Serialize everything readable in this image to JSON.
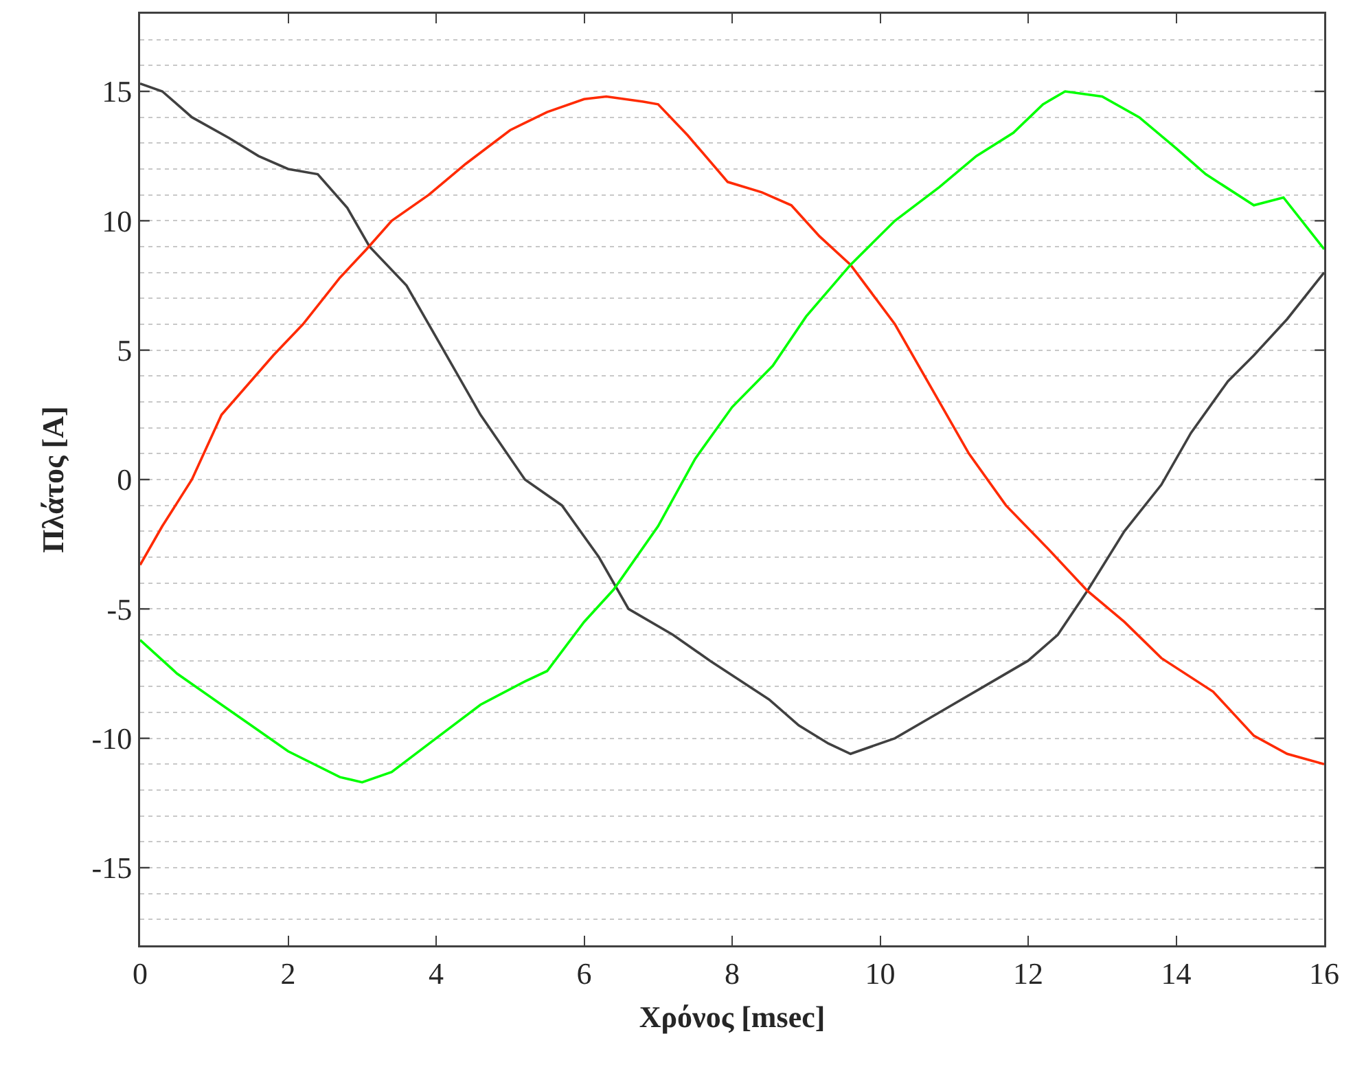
{
  "chart_data": {
    "type": "line",
    "xlabel": "Χρόνος [msec]",
    "ylabel": "Πλάτος [A]",
    "xlim": [
      0,
      16
    ],
    "xticks": [
      0,
      2,
      4,
      6,
      8,
      10,
      12,
      14,
      16
    ],
    "ylim": [
      -18,
      18
    ],
    "yticks": [
      {
        "value": -18,
        "label": null
      },
      {
        "value": -17,
        "label": null
      },
      {
        "value": -16,
        "label": null
      },
      -15,
      {
        "value": -14,
        "label": null
      },
      {
        "value": -13,
        "label": null
      },
      {
        "value": -12,
        "label": null
      },
      {
        "value": -11,
        "label": null
      },
      -10,
      {
        "value": -9,
        "label": null
      },
      {
        "value": -8,
        "label": null
      },
      {
        "value": -7,
        "label": null
      },
      {
        "value": -6,
        "label": null
      },
      -5,
      {
        "value": -4,
        "label": null
      },
      {
        "value": -3,
        "label": null
      },
      {
        "value": -2,
        "label": null
      },
      {
        "value": -1,
        "label": null
      },
      0,
      {
        "value": 1,
        "label": null
      },
      {
        "value": 2,
        "label": null
      },
      {
        "value": 3,
        "label": null
      },
      {
        "value": 4,
        "label": null
      },
      5,
      {
        "value": 6,
        "label": null
      },
      {
        "value": 7,
        "label": null
      },
      {
        "value": 8,
        "label": null
      },
      {
        "value": 9,
        "label": null
      },
      10,
      {
        "value": 11,
        "label": null
      },
      {
        "value": 12,
        "label": null
      },
      {
        "value": 13,
        "label": null
      },
      {
        "value": 14,
        "label": null
      },
      15,
      {
        "value": 16,
        "label": null
      },
      {
        "value": 17,
        "label": null
      },
      {
        "value": 18,
        "label": null
      }
    ],
    "grid": "y",
    "marker": "none",
    "line_style": "solid",
    "series": [
      {
        "color": "#404040",
        "x": [
          0,
          0.3,
          0.7,
          1.2,
          1.6,
          2.0,
          2.4,
          2.8,
          3.1,
          3.6,
          4.1,
          4.6,
          5.2,
          5.7,
          6.2,
          6.6,
          7.2,
          7.7,
          8.5,
          8.9,
          9.3,
          9.6,
          10.2,
          10.8,
          11.4,
          12.0,
          12.4,
          12.8,
          13.3,
          13.8,
          14.2,
          14.7,
          15.05,
          15.5,
          16
        ],
        "values": [
          15.3,
          15,
          14,
          13.2,
          12.5,
          12,
          11.8,
          10.5,
          9,
          7.5,
          5,
          2.5,
          0,
          -1,
          -3,
          -5,
          -6,
          -7,
          -8.5,
          -9.5,
          -10.2,
          -10.6,
          -10,
          -9,
          -8,
          -7,
          -6,
          -4.3,
          -2,
          -0.2,
          1.8,
          3.8,
          4.8,
          6.2,
          8
        ]
      },
      {
        "color": "#ff2a00",
        "x": [
          0,
          0.3,
          0.7,
          1.1,
          1.8,
          2.2,
          2.7,
          3.06,
          3.4,
          3.9,
          4.4,
          5.0,
          5.5,
          6.0,
          6.3,
          6.8,
          7.0,
          7.4,
          7.94,
          8.4,
          8.8,
          9.18,
          9.6,
          10.2,
          10.7,
          11.2,
          11.7,
          12.26,
          12.8,
          13.3,
          13.8,
          14.5,
          15.05,
          15.5,
          16
        ],
        "values": [
          -3.3,
          -1.8,
          0,
          2.5,
          4.8,
          6,
          7.8,
          8.9,
          10,
          11,
          12.2,
          13.5,
          14.2,
          14.7,
          14.8,
          14.6,
          14.5,
          13.3,
          11.5,
          11.1,
          10.6,
          9.4,
          8.3,
          6,
          3.5,
          1,
          -1,
          -2.65,
          -4.3,
          -5.5,
          -6.9,
          -8.2,
          -9.9,
          -10.6,
          -11
        ]
      },
      {
        "color": "#00ff00",
        "x": [
          0,
          0.5,
          1.0,
          1.5,
          2.0,
          2.7,
          3.0,
          3.4,
          4.0,
          4.6,
          5.2,
          5.5,
          6.0,
          6.4,
          7.0,
          7.5,
          8.0,
          8.55,
          9.0,
          9.6,
          10.2,
          10.8,
          11.3,
          11.8,
          12.2,
          12.5,
          13.0,
          13.5,
          14.0,
          14.4,
          15.05,
          15.45,
          16
        ],
        "values": [
          -6.2,
          -7.5,
          -8.5,
          -9.5,
          -10.5,
          -11.5,
          -11.7,
          -11.3,
          -10,
          -8.7,
          -7.8,
          -7.4,
          -5.5,
          -4.25,
          -1.8,
          0.8,
          2.8,
          4.4,
          6.3,
          8.3,
          10,
          11.3,
          12.5,
          13.4,
          14.5,
          15,
          14.8,
          14,
          12.8,
          11.8,
          10.6,
          10.9,
          8.9
        ]
      }
    ]
  }
}
